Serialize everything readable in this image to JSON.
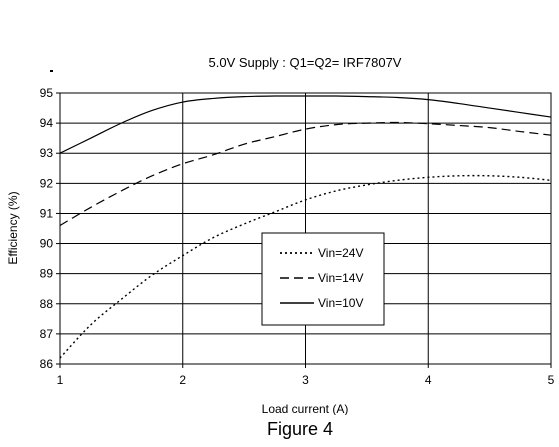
{
  "chart_data": {
    "type": "line",
    "title": "5.0V Supply : Q1=Q2= IRF7807V",
    "xlabel": "Load current (A)",
    "ylabel": "Efficiency (%)",
    "xlim": [
      1,
      5
    ],
    "ylim": [
      86,
      95
    ],
    "x_ticks": [
      "1",
      "2",
      "3",
      "4",
      "5"
    ],
    "y_ticks": [
      "86",
      "87",
      "88",
      "89",
      "90",
      "91",
      "92",
      "93",
      "94",
      "95"
    ],
    "grid": true,
    "legend_position": "center",
    "series": [
      {
        "name": "Vin=24V",
        "style": "dotted",
        "color": "#000000",
        "x": [
          1.0,
          1.25,
          1.5,
          1.75,
          2.0,
          2.25,
          2.5,
          2.75,
          3.0,
          3.25,
          3.5,
          3.75,
          4.0,
          4.25,
          4.5,
          4.75,
          5.0
        ],
        "y": [
          86.2,
          87.3,
          88.15,
          88.95,
          89.6,
          90.2,
          90.65,
          91.05,
          91.45,
          91.75,
          91.95,
          92.1,
          92.2,
          92.25,
          92.25,
          92.2,
          92.1
        ]
      },
      {
        "name": "Vin=14V",
        "style": "dashed",
        "color": "#000000",
        "x": [
          1.0,
          1.25,
          1.5,
          1.75,
          2.0,
          2.25,
          2.5,
          2.75,
          3.0,
          3.25,
          3.5,
          3.75,
          4.0,
          4.25,
          4.5,
          4.75,
          5.0
        ],
        "y": [
          90.6,
          91.2,
          91.75,
          92.25,
          92.65,
          92.95,
          93.3,
          93.55,
          93.8,
          93.95,
          94.0,
          94.02,
          93.98,
          93.92,
          93.85,
          93.72,
          93.6
        ]
      },
      {
        "name": "Vin=10V",
        "style": "solid",
        "color": "#000000",
        "x": [
          1.0,
          1.25,
          1.5,
          1.75,
          2.0,
          2.25,
          2.5,
          2.75,
          3.0,
          3.25,
          3.5,
          3.75,
          4.0,
          4.25,
          4.5,
          4.75,
          5.0
        ],
        "y": [
          93.0,
          93.5,
          94.0,
          94.42,
          94.7,
          94.82,
          94.88,
          94.9,
          94.9,
          94.9,
          94.88,
          94.85,
          94.78,
          94.65,
          94.5,
          94.35,
          94.2
        ]
      }
    ]
  },
  "figure_caption": "Figure 4"
}
